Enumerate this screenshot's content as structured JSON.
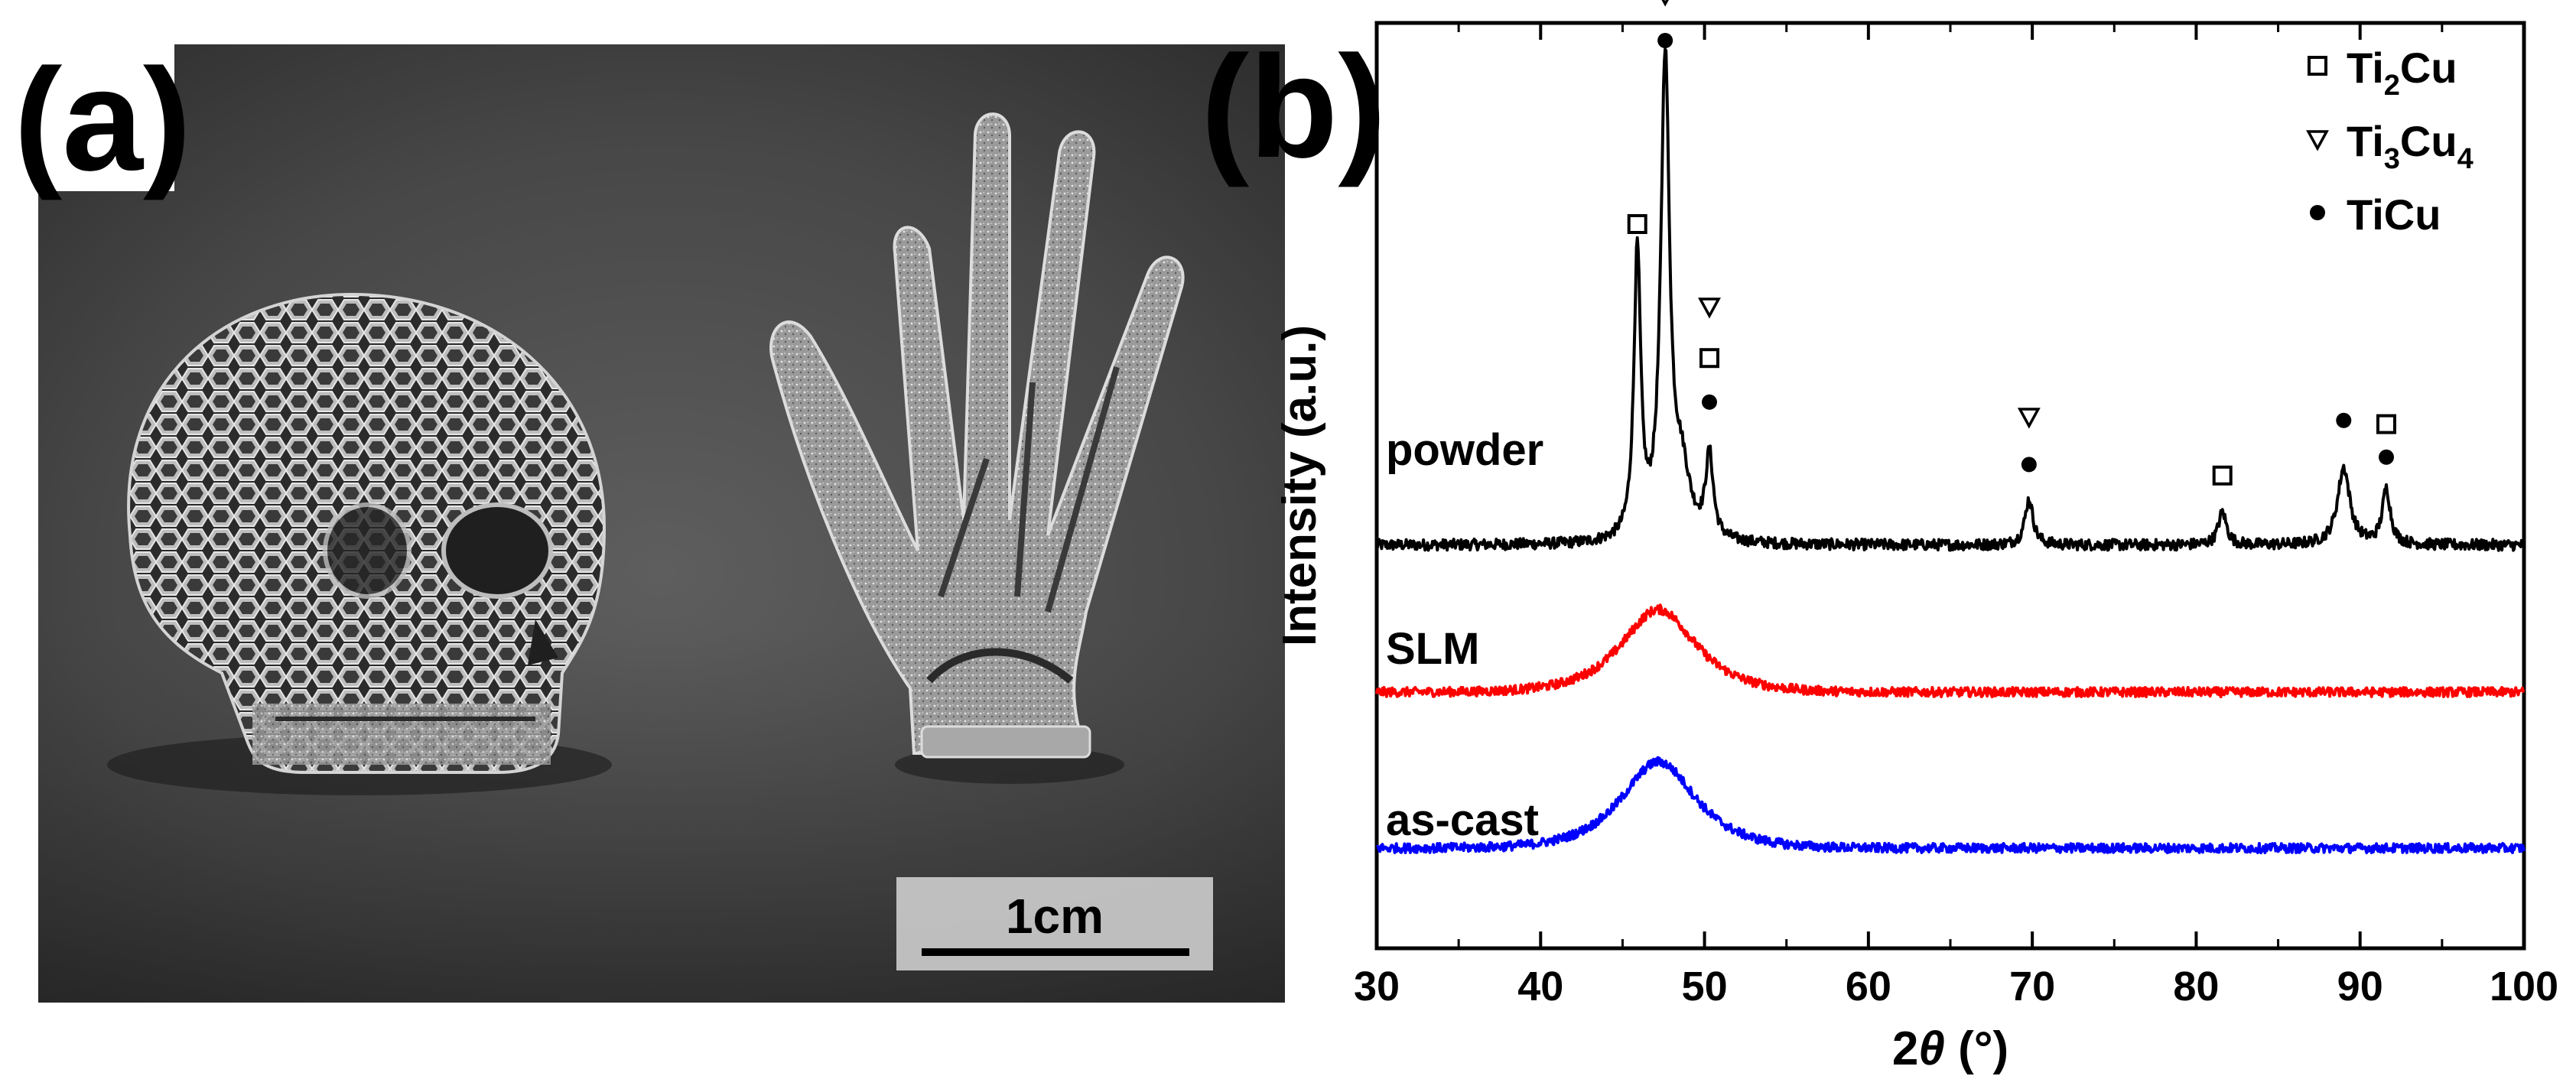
{
  "panel_a": {
    "label": "(a)",
    "scale_bar_label": "1cm"
  },
  "panel_b": {
    "label": "(b)"
  },
  "chart_data": {
    "type": "line",
    "xlabel": "2θ (°)",
    "ylabel": "Intensity (a.u.)",
    "xlim": [
      30,
      100
    ],
    "x_ticks": [
      30,
      40,
      50,
      60,
      70,
      80,
      90,
      100
    ],
    "y_ticks": [],
    "grid": false,
    "legend_position": "top-right",
    "legend": [
      {
        "symbol": "square",
        "text": "Ti2Cu",
        "base": "Ti",
        "sub": "2",
        "rest": "Cu",
        "sub2": ""
      },
      {
        "symbol": "triangle",
        "text": "Ti3Cu4",
        "base": "Ti",
        "sub": "3",
        "rest": "Cu",
        "sub2": "4"
      },
      {
        "symbol": "dot",
        "text": "TiCu",
        "base": "TiCu",
        "sub": "",
        "rest": "",
        "sub2": ""
      }
    ],
    "series": [
      {
        "name": "powder",
        "color": "#000000",
        "baseline": 0.8,
        "noise": 0.06,
        "peaks": [
          {
            "x": 45.9,
            "height": 1.55,
            "width": 0.25
          },
          {
            "x": 47.6,
            "height": 2.6,
            "width": 0.32
          },
          {
            "x": 48.6,
            "height": 0.35,
            "width": 0.6
          },
          {
            "x": 50.3,
            "height": 0.45,
            "width": 0.28
          },
          {
            "x": 69.8,
            "height": 0.25,
            "width": 0.3
          },
          {
            "x": 81.6,
            "height": 0.18,
            "width": 0.3
          },
          {
            "x": 89.0,
            "height": 0.42,
            "width": 0.45
          },
          {
            "x": 91.6,
            "height": 0.3,
            "width": 0.3
          }
        ],
        "markers": [
          {
            "x": 45.9,
            "symbol": "square",
            "level": 2.55
          },
          {
            "x": 47.6,
            "symbol": "dot",
            "level": 3.55
          },
          {
            "x": 47.6,
            "symbol": "triangle",
            "level": 3.8
          },
          {
            "x": 50.3,
            "symbol": "dot",
            "level": 1.58
          },
          {
            "x": 50.3,
            "symbol": "square",
            "level": 1.82
          },
          {
            "x": 50.3,
            "symbol": "triangle",
            "level": 2.1
          },
          {
            "x": 69.8,
            "symbol": "dot",
            "level": 1.24
          },
          {
            "x": 69.8,
            "symbol": "triangle",
            "level": 1.5
          },
          {
            "x": 81.6,
            "symbol": "square",
            "level": 1.18
          },
          {
            "x": 89.0,
            "symbol": "dot",
            "level": 1.48
          },
          {
            "x": 91.6,
            "symbol": "dot",
            "level": 1.28
          },
          {
            "x": 91.6,
            "symbol": "square",
            "level": 1.46
          }
        ]
      },
      {
        "name": "SLM",
        "color": "#ff0000",
        "baseline": 0.0,
        "noise": 0.05,
        "peaks": [
          {
            "x": 47.2,
            "height": 0.45,
            "width": 3.0
          }
        ],
        "markers": []
      },
      {
        "name": "as-cast",
        "color": "#0000ff",
        "baseline": -0.85,
        "noise": 0.05,
        "peaks": [
          {
            "x": 47.2,
            "height": 0.47,
            "width": 3.0
          }
        ],
        "markers": []
      }
    ]
  }
}
